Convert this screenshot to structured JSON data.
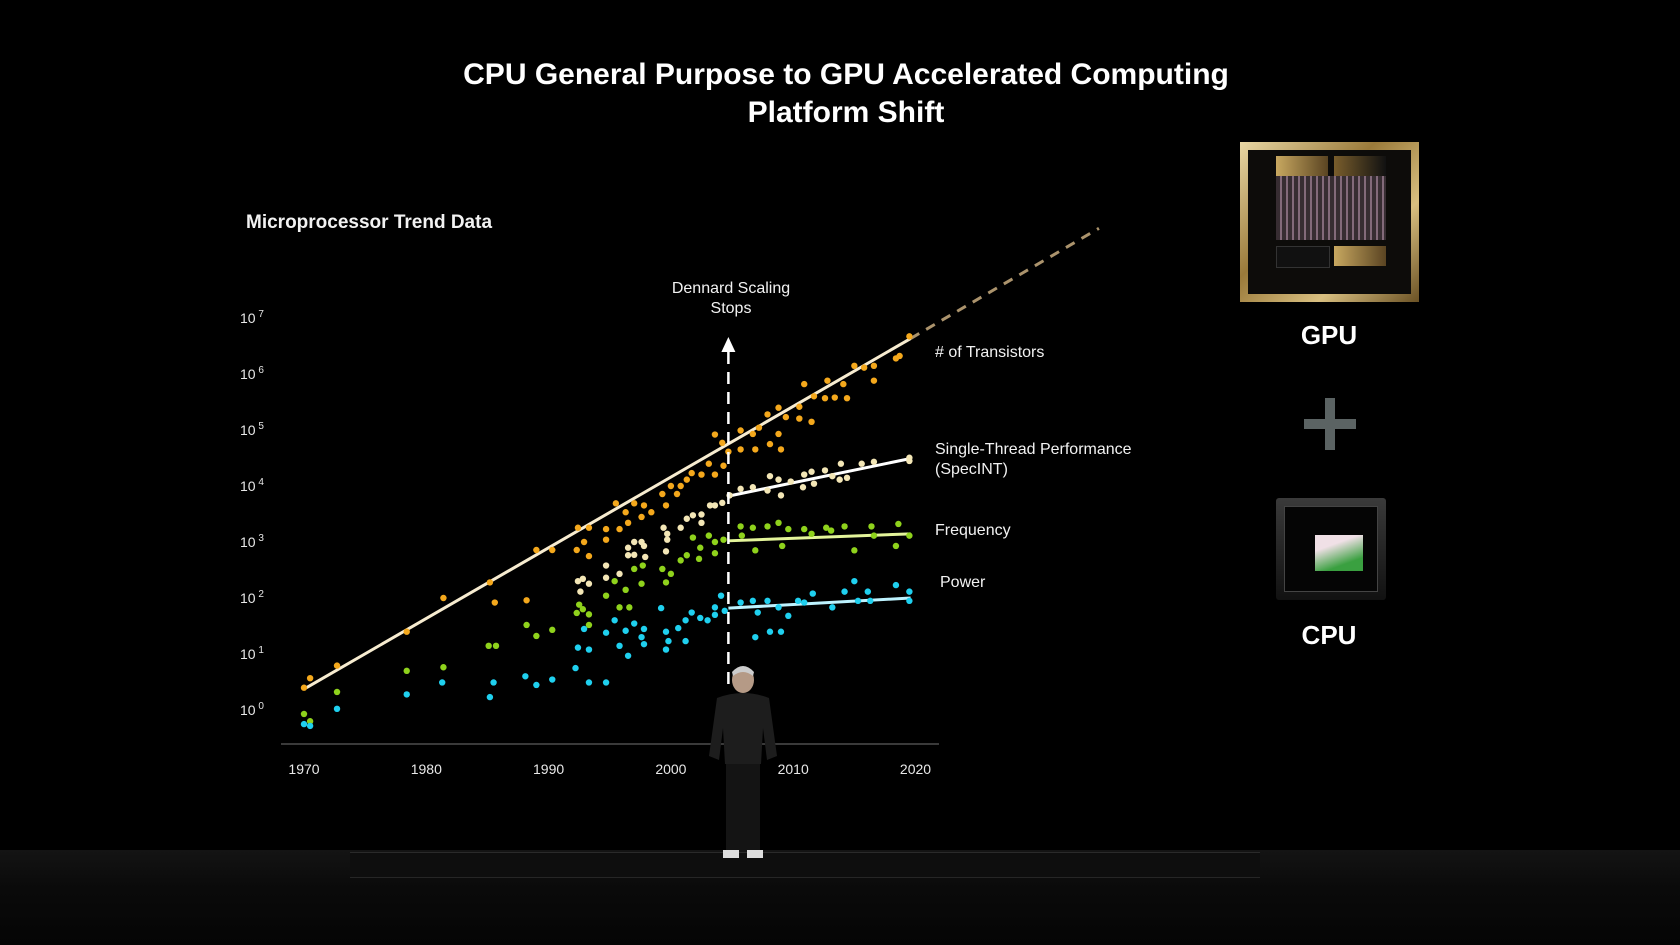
{
  "slide": {
    "title_line1": "CPU General Purpose to GPU Accelerated Computing",
    "title_line2": "Platform Shift",
    "gpu_label": "GPU",
    "cpu_label": "CPU",
    "plus_icon": "plus-icon"
  },
  "chart_data": {
    "type": "scatter",
    "title": "Microprocessor Trend Data",
    "xlabel": "",
    "ylabel": "",
    "xlim": [
      1970,
      2020
    ],
    "ylim": [
      1,
      10000000
    ],
    "yscale": "log",
    "grid": false,
    "x_ticks": [
      "1970",
      "1980",
      "1990",
      "2000",
      "2010",
      "2020"
    ],
    "y_ticks": [
      {
        "base": "10",
        "exp": "0"
      },
      {
        "base": "10",
        "exp": "1"
      },
      {
        "base": "10",
        "exp": "2"
      },
      {
        "base": "10",
        "exp": "3"
      },
      {
        "base": "10",
        "exp": "4"
      },
      {
        "base": "10",
        "exp": "5"
      },
      {
        "base": "10",
        "exp": "6"
      },
      {
        "base": "10",
        "exp": "7"
      }
    ],
    "annotation": {
      "line1": "Dennard Scaling",
      "line2": "Stops",
      "year": 2004.7
    },
    "series": [
      {
        "name": "# of Transistors",
        "color": "#f4a81c",
        "trend_color": "#f7ecd0",
        "trend": [
          [
            1970.2,
            2.5
          ],
          [
            2019.6,
            4300000
          ]
        ],
        "trend_extension": [
          [
            2019.6,
            4300000
          ],
          [
            2035,
            400000000
          ]
        ],
        "points": [
          [
            1970,
            2.5
          ],
          [
            1970.5,
            3.7
          ],
          [
            1972.7,
            6.2
          ],
          [
            1978.4,
            25
          ],
          [
            1981.4,
            100
          ],
          [
            1985.2,
            190
          ],
          [
            1985.6,
            83
          ],
          [
            1988.2,
            91
          ],
          [
            1989,
            720
          ],
          [
            1990.3,
            720
          ],
          [
            1992.4,
            1800
          ],
          [
            1992.3,
            720
          ],
          [
            1993.3,
            1800
          ],
          [
            1992.9,
            1000
          ],
          [
            1993.3,
            560
          ],
          [
            1994.7,
            1700
          ],
          [
            1994.7,
            1100
          ],
          [
            1995.5,
            4900
          ],
          [
            1995.8,
            1700
          ],
          [
            1996.3,
            3400
          ],
          [
            1996.5,
            2200
          ],
          [
            1997,
            4900
          ],
          [
            1997.6,
            2800
          ],
          [
            1997.8,
            4500
          ],
          [
            1998.4,
            3400
          ],
          [
            1999.3,
            7200
          ],
          [
            1999.6,
            4500
          ],
          [
            2000,
            10000
          ],
          [
            2000.5,
            7200
          ],
          [
            2000.8,
            10000
          ],
          [
            2001.3,
            13000
          ],
          [
            2001.7,
            17000
          ],
          [
            2002.5,
            16000
          ],
          [
            2003.1,
            25000
          ],
          [
            2003.6,
            16000
          ],
          [
            2003.6,
            83000
          ],
          [
            2004.3,
            23000
          ],
          [
            2004.2,
            59000
          ],
          [
            2004.7,
            41000
          ],
          [
            2005.7,
            98000
          ],
          [
            2005.7,
            45000
          ],
          [
            2006.7,
            85000
          ],
          [
            2006.9,
            45000
          ],
          [
            2007.2,
            110000
          ],
          [
            2007.9,
            190000
          ],
          [
            2008.1,
            56000
          ],
          [
            2008.8,
            250000
          ],
          [
            2008.8,
            85000
          ],
          [
            2009,
            45000
          ],
          [
            2009.4,
            170000
          ],
          [
            2010.5,
            260000
          ],
          [
            2010.5,
            160000
          ],
          [
            2011.5,
            140000
          ],
          [
            2010.9,
            660000
          ],
          [
            2011.7,
            400000
          ],
          [
            2012.8,
            760000
          ],
          [
            2012.6,
            370000
          ],
          [
            2013.4,
            380000
          ],
          [
            2014.1,
            660000
          ],
          [
            2014.4,
            370000
          ],
          [
            2015,
            1400000
          ],
          [
            2015.8,
            1300000
          ],
          [
            2016.6,
            1400000
          ],
          [
            2016.6,
            760000
          ],
          [
            2018.4,
            1900000
          ],
          [
            2018.7,
            2100000
          ],
          [
            2019.5,
            4700000
          ]
        ]
      },
      {
        "name": "Single-Thread Performance",
        "name_line2": "(SpecINT)",
        "color": "#f3e6b6",
        "trend_color": "#ffffff",
        "trend": [
          [
            2004.7,
            6600
          ],
          [
            2019.6,
            31000
          ]
        ],
        "points": [
          [
            1992.4,
            200
          ],
          [
            1992.8,
            220
          ],
          [
            1992.6,
            130
          ],
          [
            1993.3,
            180
          ],
          [
            1994.7,
            380
          ],
          [
            1994.7,
            230
          ],
          [
            1995.8,
            270
          ],
          [
            1996.5,
            790
          ],
          [
            1996.5,
            580
          ],
          [
            1997,
            1000
          ],
          [
            1997,
            590
          ],
          [
            1997.6,
            1000
          ],
          [
            1997.8,
            850
          ],
          [
            1997.9,
            540
          ],
          [
            1999.4,
            1800
          ],
          [
            1999.7,
            1400
          ],
          [
            1999.7,
            1100
          ],
          [
            1999.6,
            680
          ],
          [
            2000.8,
            1800
          ],
          [
            2001.3,
            2600
          ],
          [
            2001.8,
            3000
          ],
          [
            2002.5,
            3100
          ],
          [
            2002.5,
            2200
          ],
          [
            2003.2,
            4500
          ],
          [
            2003.6,
            4500
          ],
          [
            2004.2,
            5000
          ],
          [
            2004.8,
            6800
          ],
          [
            2005.7,
            8900
          ],
          [
            2006.7,
            9500
          ],
          [
            2007.9,
            8300
          ],
          [
            2008.1,
            15000
          ],
          [
            2008.8,
            13000
          ],
          [
            2009,
            6800
          ],
          [
            2009.8,
            12000
          ],
          [
            2010.9,
            16000
          ],
          [
            2010.8,
            9500
          ],
          [
            2011.5,
            18000
          ],
          [
            2011.7,
            11000
          ],
          [
            2012.6,
            19000
          ],
          [
            2013.2,
            15000
          ],
          [
            2013.9,
            25000
          ],
          [
            2014.4,
            14000
          ],
          [
            2013.8,
            13000
          ],
          [
            2015.6,
            25000
          ],
          [
            2016.6,
            27000
          ],
          [
            2019.5,
            32000
          ],
          [
            2019.5,
            28000
          ]
        ]
      },
      {
        "name": "Frequency",
        "color": "#8fd21c",
        "trend_color": "#e4f59a",
        "trend": [
          [
            2004.7,
            1050
          ],
          [
            2019.6,
            1400
          ]
        ],
        "points": [
          [
            1970,
            0.85
          ],
          [
            1970.5,
            0.63
          ],
          [
            1972.7,
            2.1
          ],
          [
            1978.4,
            5
          ],
          [
            1981.4,
            5.8
          ],
          [
            1985.1,
            14
          ],
          [
            1985.7,
            14
          ],
          [
            1988.2,
            33
          ],
          [
            1989,
            21
          ],
          [
            1990.3,
            27
          ],
          [
            1992.3,
            54
          ],
          [
            1992.5,
            76
          ],
          [
            1992.8,
            63
          ],
          [
            1993.3,
            51
          ],
          [
            1993.3,
            33
          ],
          [
            1994.7,
            110
          ],
          [
            1995.4,
            200
          ],
          [
            1995.8,
            68
          ],
          [
            1996.6,
            68
          ],
          [
            1996.3,
            140
          ],
          [
            1997,
            330
          ],
          [
            1997.6,
            180
          ],
          [
            1997.7,
            380
          ],
          [
            1999.3,
            330
          ],
          [
            1999.6,
            190
          ],
          [
            2000,
            270
          ],
          [
            2000.8,
            470
          ],
          [
            2001.3,
            580
          ],
          [
            2001.8,
            1200
          ],
          [
            2002.4,
            790
          ],
          [
            2002.3,
            500
          ],
          [
            2003.1,
            1300
          ],
          [
            2003.6,
            630
          ],
          [
            2003.6,
            1000
          ],
          [
            2004.3,
            1100
          ],
          [
            2005.7,
            1900
          ],
          [
            2005.8,
            1300
          ],
          [
            2006.7,
            1800
          ],
          [
            2006.9,
            710
          ],
          [
            2007.9,
            1900
          ],
          [
            2008.8,
            2200
          ],
          [
            2009.1,
            850
          ],
          [
            2009.6,
            1700
          ],
          [
            2010.9,
            1700
          ],
          [
            2011.5,
            1400
          ],
          [
            2012.7,
            1800
          ],
          [
            2013.1,
            1600
          ],
          [
            2014.2,
            1900
          ],
          [
            2015,
            710
          ],
          [
            2016.4,
            1900
          ],
          [
            2016.6,
            1300
          ],
          [
            2018.6,
            2100
          ],
          [
            2018.4,
            850
          ],
          [
            2019.5,
            1300
          ]
        ]
      },
      {
        "name": "Power",
        "color": "#1fd0ef",
        "trend_color": "#bdf3ff",
        "trend": [
          [
            2004.7,
            66
          ],
          [
            2019.6,
            100
          ]
        ],
        "points": [
          [
            1970,
            0.56
          ],
          [
            1970.5,
            0.52
          ],
          [
            1972.7,
            1.05
          ],
          [
            1978.4,
            1.9
          ],
          [
            1981.3,
            3.1
          ],
          [
            1985.2,
            1.7
          ],
          [
            1985.5,
            3.1
          ],
          [
            1988.1,
            4
          ],
          [
            1989,
            2.8
          ],
          [
            1990.3,
            3.5
          ],
          [
            1992.2,
            5.6
          ],
          [
            1992.4,
            13
          ],
          [
            1993.3,
            3.1
          ],
          [
            1993.3,
            12
          ],
          [
            1992.9,
            28
          ],
          [
            1994.7,
            3.1
          ],
          [
            1994.7,
            24
          ],
          [
            1995.4,
            40
          ],
          [
            1995.8,
            14
          ],
          [
            1996.3,
            26
          ],
          [
            1996.5,
            9.3
          ],
          [
            1997,
            35
          ],
          [
            1997.6,
            20
          ],
          [
            1997.8,
            28
          ],
          [
            1997.8,
            15
          ],
          [
            1999.2,
            66
          ],
          [
            1999.6,
            25
          ],
          [
            1999.8,
            17
          ],
          [
            1999.6,
            12
          ],
          [
            2000.6,
            29
          ],
          [
            2001.2,
            40
          ],
          [
            2001.2,
            17
          ],
          [
            2001.7,
            55
          ],
          [
            2002.4,
            44
          ],
          [
            2003,
            40
          ],
          [
            2003.6,
            50
          ],
          [
            2003.6,
            68
          ],
          [
            2004.1,
            110
          ],
          [
            2004.4,
            59
          ],
          [
            2005.7,
            83
          ],
          [
            2006.7,
            89
          ],
          [
            2006.9,
            20
          ],
          [
            2007.1,
            55
          ],
          [
            2007.9,
            89
          ],
          [
            2008.1,
            25
          ],
          [
            2009,
            25
          ],
          [
            2008.8,
            68
          ],
          [
            2009.6,
            48
          ],
          [
            2010.4,
            89
          ],
          [
            2010.9,
            83
          ],
          [
            2011.6,
            120
          ],
          [
            2013.2,
            68
          ],
          [
            2014.2,
            130
          ],
          [
            2015,
            200
          ],
          [
            2015.3,
            89
          ],
          [
            2016.1,
            130
          ],
          [
            2016.3,
            89
          ],
          [
            2018.4,
            170
          ],
          [
            2019.5,
            130
          ],
          [
            2019.5,
            89
          ]
        ]
      }
    ]
  }
}
